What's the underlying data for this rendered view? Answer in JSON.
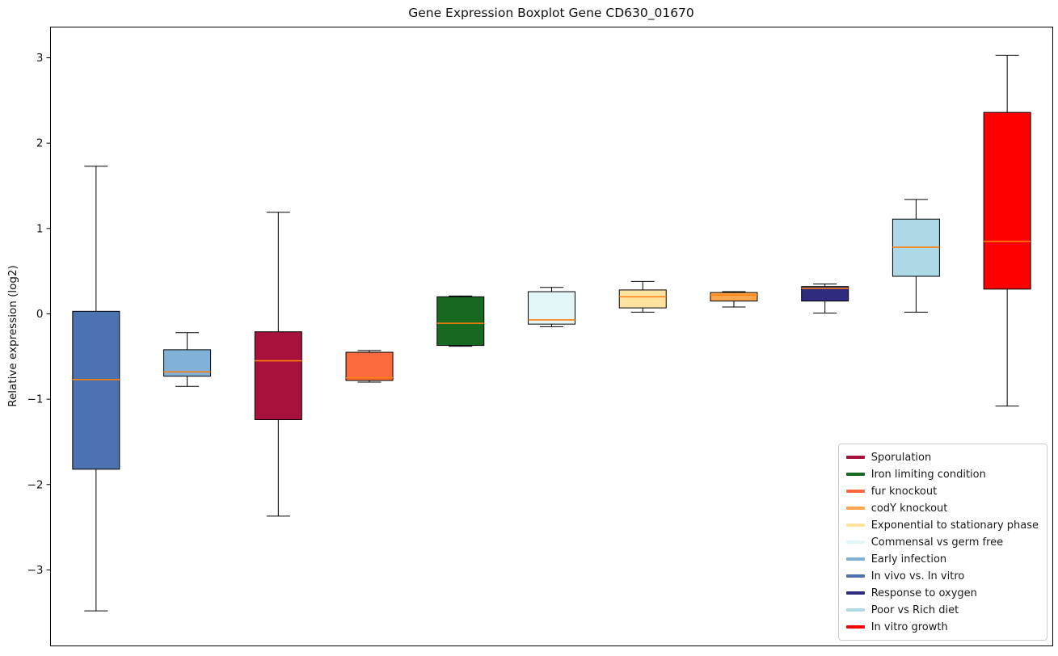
{
  "chart_data": {
    "type": "boxplot",
    "title": "Gene Expression Boxplot Gene CD630_01670",
    "xlabel": "",
    "ylabel": "Relative expression (log2)",
    "ylim": [
      -3.89,
      3.36
    ],
    "yticks": [
      -3,
      -2,
      -1,
      0,
      1,
      2,
      3
    ],
    "x_tick_labels": [],
    "grid": false,
    "box_edge_color": "#000000",
    "whisker_color": "#000000",
    "median_color": "#FF7F0E",
    "boxes": [
      {
        "name": "In vivo vs. In vitro",
        "color": "#4C72B0",
        "whisker_low": -3.48,
        "q1": -1.82,
        "median": -0.77,
        "q3": 0.03,
        "whisker_high": 1.73
      },
      {
        "name": "Early infection",
        "color": "#7FB2D6",
        "whisker_low": -0.85,
        "q1": -0.73,
        "median": -0.68,
        "q3": -0.42,
        "whisker_high": -0.22
      },
      {
        "name": "Sporulation",
        "color": "#A6123C",
        "whisker_low": -2.37,
        "q1": -1.24,
        "median": -0.55,
        "q3": -0.21,
        "whisker_high": 1.19
      },
      {
        "name": "fur knockout",
        "color": "#FB6A3C",
        "whisker_low": -0.8,
        "q1": -0.78,
        "median": -0.75,
        "q3": -0.45,
        "whisker_high": -0.43
      },
      {
        "name": "Iron limiting condition",
        "color": "#17691F",
        "whisker_low": -0.38,
        "q1": -0.37,
        "median": -0.11,
        "q3": 0.2,
        "whisker_high": 0.21
      },
      {
        "name": "Commensal vs germ free",
        "color": "#E2F6F8",
        "whisker_low": -0.15,
        "q1": -0.12,
        "median": -0.07,
        "q3": 0.26,
        "whisker_high": 0.31
      },
      {
        "name": "Exponential to stationary phase",
        "color": "#FFE39E",
        "whisker_low": 0.02,
        "q1": 0.07,
        "median": 0.2,
        "q3": 0.28,
        "whisker_high": 0.38
      },
      {
        "name": "codY knockout",
        "color": "#FFA64F",
        "whisker_low": 0.08,
        "q1": 0.15,
        "median": 0.22,
        "q3": 0.25,
        "whisker_high": 0.26
      },
      {
        "name": "Response to oxygen",
        "color": "#2F2C7F",
        "whisker_low": 0.01,
        "q1": 0.15,
        "median": 0.3,
        "q3": 0.32,
        "whisker_high": 0.35
      },
      {
        "name": "Poor vs Rich diet",
        "color": "#ADD8E6",
        "whisker_low": 0.02,
        "q1": 0.44,
        "median": 0.78,
        "q3": 1.11,
        "whisker_high": 1.34
      },
      {
        "name": "In vitro growth",
        "color": "#FF0000",
        "whisker_low": -1.08,
        "q1": 0.29,
        "median": 0.85,
        "q3": 2.36,
        "whisker_high": 3.03
      }
    ],
    "legend": {
      "position": "lower right",
      "entries": [
        {
          "label": "Sporulation",
          "color": "#A6123C"
        },
        {
          "label": "Iron limiting condition",
          "color": "#17691F"
        },
        {
          "label": "fur knockout",
          "color": "#FB6A3C"
        },
        {
          "label": "codY knockout",
          "color": "#FFA64F"
        },
        {
          "label": "Exponential to stationary phase",
          "color": "#FFE39E"
        },
        {
          "label": "Commensal vs germ free",
          "color": "#E2F6F8"
        },
        {
          "label": "Early infection",
          "color": "#7FB2D6"
        },
        {
          "label": "In vivo vs. In vitro",
          "color": "#4C72B0"
        },
        {
          "label": "Response to oxygen",
          "color": "#2F2C7F"
        },
        {
          "label": "Poor vs Rich diet",
          "color": "#ADD8E6"
        },
        {
          "label": "In vitro growth",
          "color": "#FF0000"
        }
      ]
    }
  }
}
